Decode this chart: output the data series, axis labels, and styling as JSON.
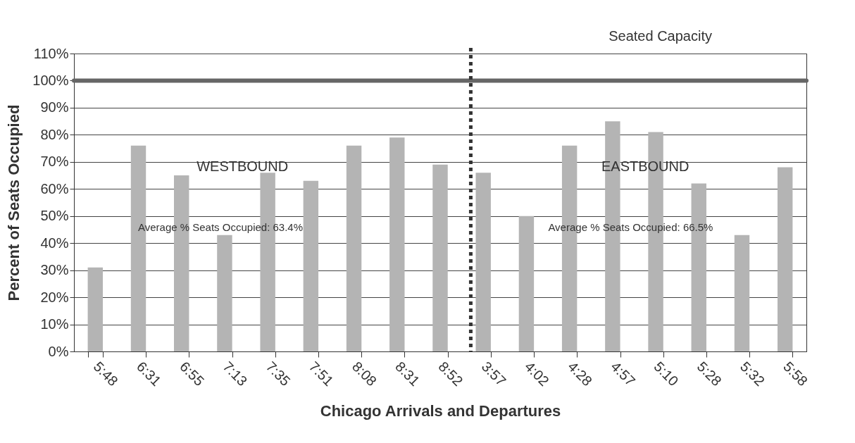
{
  "chart_data": {
    "type": "bar",
    "xlabel": "Chicago Arrivals and Departures",
    "ylabel": "Percent of Seats Occupied",
    "categories": [
      "5:48",
      "6:31",
      "6:55",
      "7:13",
      "7:35",
      "7:51",
      "8:08",
      "8:31",
      "8:52",
      "3:57",
      "4:02",
      "4:28",
      "4:57",
      "5:10",
      "5:28",
      "5:32",
      "5:58"
    ],
    "values": [
      31,
      76,
      65,
      43,
      66,
      63,
      76,
      79,
      69,
      66,
      50,
      76,
      85,
      81,
      62,
      43,
      68
    ],
    "color": "#b4b4b4",
    "ylim": [
      0,
      110
    ],
    "yticks": [
      {
        "value": 0,
        "label": "0%"
      },
      {
        "value": 10,
        "label": "10%"
      },
      {
        "value": 20,
        "label": "20%"
      },
      {
        "value": 30,
        "label": "30%"
      },
      {
        "value": 40,
        "label": "40%"
      },
      {
        "value": 50,
        "label": "50%"
      },
      {
        "value": 60,
        "label": "60%"
      },
      {
        "value": 70,
        "label": "70%"
      },
      {
        "value": 80,
        "label": "80%"
      },
      {
        "value": 90,
        "label": "90%"
      },
      {
        "value": 100,
        "label": "100%"
      },
      {
        "value": 110,
        "label": "110%"
      }
    ],
    "grid": "y",
    "ref_lines": [
      {
        "axis": "y",
        "value": 100,
        "label": "Seated Capacity",
        "color": "#666666",
        "line_style": "solid"
      },
      {
        "axis": "x",
        "value": "3:57",
        "color": "#333333",
        "line_style": "dotted"
      }
    ],
    "annotations": [
      "WESTBOUND",
      "Average % Seats Occupied: 63.4%",
      "EASTBOUND",
      "Average % Seats Occupied: 66.5%"
    ]
  }
}
